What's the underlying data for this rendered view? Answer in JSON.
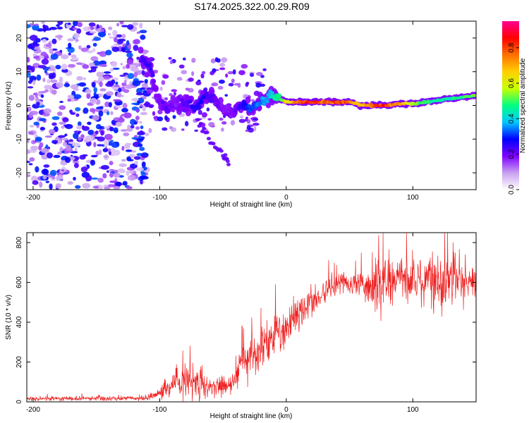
{
  "title": "S174.2025.322.00.29.R09",
  "chart_data": [
    {
      "type": "heatmap",
      "title": "S174.2025.322.00.29.R09",
      "xlabel": "Height of straight line (km)",
      "ylabel": "Frequency (Hz)",
      "xlim": [
        -205,
        150
      ],
      "ylim": [
        -25,
        25
      ],
      "x_ticks": [
        -200,
        -100,
        0,
        100
      ],
      "x_tick_labels": [
        "-200",
        "-100",
        "0",
        "100"
      ],
      "y_ticks": [
        -20,
        -10,
        0,
        10,
        20
      ],
      "y_tick_labels": [
        "-20",
        "-10",
        "0",
        "10",
        "20"
      ],
      "colorbar": {
        "label": "Normalized spectral amplitude",
        "range": [
          0.0,
          0.95
        ],
        "ticks": [
          0.0,
          0.2,
          0.4,
          0.6,
          0.8
        ],
        "tick_labels": [
          "0.0",
          "0.2",
          "0.4",
          "0.6",
          "0.8"
        ],
        "colors": [
          "#ffffff",
          "#c9a0f0",
          "#7f00ff",
          "#0000ff",
          "#00c8ff",
          "#00ff80",
          "#c8ff00",
          "#ffd000",
          "#ff7000",
          "#ff0000",
          "#ff0090"
        ]
      },
      "ridge": {
        "x": [
          -115,
          -108,
          -102,
          -95,
          -88,
          -80,
          -72,
          -65,
          -58,
          -50,
          -42,
          -35,
          -28,
          -20,
          -12,
          -5,
          0,
          10,
          20,
          30,
          40,
          50,
          60,
          70,
          80,
          90,
          100,
          110,
          120,
          130,
          140,
          150
        ],
        "y": [
          14,
          12,
          2,
          -1,
          0,
          1,
          -1,
          3,
          2,
          -1,
          -2,
          0,
          -1,
          1,
          3,
          2,
          1,
          1,
          1,
          1,
          1,
          1,
          0,
          0,
          0,
          0.5,
          0.5,
          1,
          1.5,
          2,
          2.5,
          3
        ],
        "amplitude": [
          0.25,
          0.3,
          0.2,
          0.25,
          0.2,
          0.25,
          0.3,
          0.3,
          0.25,
          0.2,
          0.2,
          0.3,
          0.35,
          0.4,
          0.45,
          0.55,
          0.7,
          0.85,
          0.95,
          0.9,
          0.9,
          0.85,
          0.75,
          0.9,
          0.9,
          0.8,
          0.65,
          0.55,
          0.5,
          0.5,
          0.55,
          0.6
        ]
      },
      "branch": {
        "x": [
          -70,
          -60,
          -50,
          -45
        ],
        "y": [
          -5,
          -10,
          -15,
          -18
        ]
      }
    },
    {
      "type": "line",
      "xlabel": "Height of straight line (km)",
      "ylabel": "SNR (10 * v/v)",
      "xlim": [
        -205,
        150
      ],
      "ylim": [
        0,
        850
      ],
      "x_ticks": [
        -200,
        -100,
        0,
        100
      ],
      "x_tick_labels": [
        "-200",
        "-100",
        "0",
        "100"
      ],
      "y_ticks": [
        0,
        200,
        400,
        600,
        800
      ],
      "y_tick_labels": [
        "0",
        "200",
        "400",
        "600",
        "800"
      ],
      "color": "#ee2020",
      "envelope_x": [
        -205,
        -110,
        -100,
        -90,
        -80,
        -70,
        -60,
        -50,
        -40,
        -35,
        -30,
        -25,
        -20,
        -10,
        0,
        10,
        20,
        30,
        40,
        50,
        60,
        70,
        80,
        90,
        100,
        110,
        120,
        130,
        140,
        150
      ],
      "envelope_mean": [
        15,
        18,
        40,
        90,
        110,
        100,
        80,
        70,
        90,
        250,
        200,
        240,
        280,
        340,
        380,
        440,
        500,
        560,
        590,
        590,
        590,
        580,
        600,
        620,
        600,
        620,
        590,
        620,
        600,
        610
      ],
      "envelope_spread": [
        10,
        10,
        30,
        60,
        90,
        70,
        60,
        50,
        60,
        200,
        130,
        130,
        120,
        100,
        90,
        80,
        80,
        70,
        60,
        50,
        60,
        150,
        130,
        130,
        140,
        150,
        160,
        130,
        100,
        80
      ]
    }
  ]
}
